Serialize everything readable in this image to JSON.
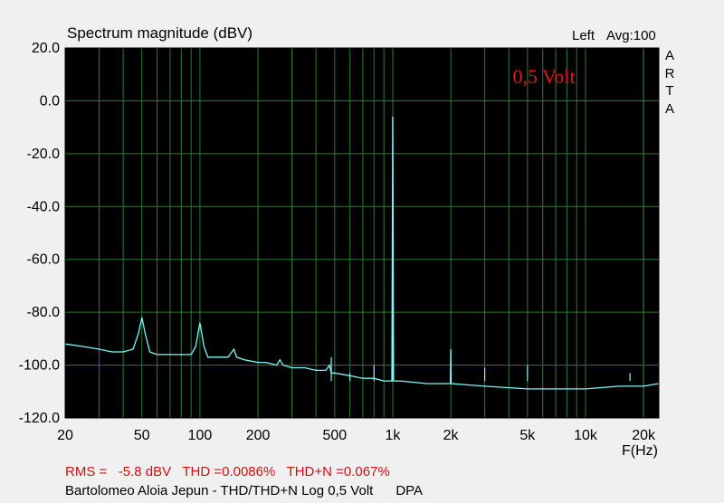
{
  "header": {
    "title": "Spectrum magnitude (dBV)",
    "channel": "Left",
    "averaging": "Avg:100",
    "brand_letters": [
      "A",
      "R",
      "T",
      "A"
    ]
  },
  "footer": {
    "stats": "RMS =   -5.8 dBV   THD =0.0086%   THD+N =0.067%",
    "caption": "Bartolomeo Aloia Jepun - THD/THD+N Log 0,5 Volt      DPA"
  },
  "colors": {
    "background": "#000000",
    "grid": "#2e7d2e",
    "trace": "#7ff7f7",
    "annotation": "#e01818"
  },
  "chart_data": {
    "type": "line",
    "title": "Spectrum magnitude (dBV)",
    "xlabel": "F(Hz)",
    "ylabel": "",
    "xscale": "log",
    "xlim": [
      20,
      24000
    ],
    "ylim": [
      -120,
      20
    ],
    "grid": true,
    "annotation": "0,5 Volt",
    "x_ticks": [
      {
        "value": 20,
        "label": "20"
      },
      {
        "value": 50,
        "label": "50"
      },
      {
        "value": 100,
        "label": "100"
      },
      {
        "value": 200,
        "label": "200"
      },
      {
        "value": 500,
        "label": "500"
      },
      {
        "value": 1000,
        "label": "1k"
      },
      {
        "value": 2000,
        "label": "2k"
      },
      {
        "value": 5000,
        "label": "5k"
      },
      {
        "value": 10000,
        "label": "10k"
      },
      {
        "value": 20000,
        "label": "20k"
      }
    ],
    "y_ticks": [
      {
        "value": 20,
        "label": "20.0"
      },
      {
        "value": 0,
        "label": "0.0"
      },
      {
        "value": -20,
        "label": "-20.0"
      },
      {
        "value": -40,
        "label": "-40.0"
      },
      {
        "value": -60,
        "label": "-60.0"
      },
      {
        "value": -80,
        "label": "-80.0"
      },
      {
        "value": -100,
        "label": "-100.0"
      },
      {
        "value": -120,
        "label": "-120.0"
      }
    ],
    "series": [
      {
        "points": [
          [
            20,
            -92
          ],
          [
            25,
            -93
          ],
          [
            30,
            -94
          ],
          [
            35,
            -95
          ],
          [
            40,
            -95
          ],
          [
            45,
            -94
          ],
          [
            48,
            -88
          ],
          [
            50,
            -82
          ],
          [
            52,
            -88
          ],
          [
            55,
            -95
          ],
          [
            60,
            -96
          ],
          [
            70,
            -96
          ],
          [
            80,
            -96
          ],
          [
            90,
            -96
          ],
          [
            95,
            -93
          ],
          [
            100,
            -84
          ],
          [
            105,
            -93
          ],
          [
            110,
            -97
          ],
          [
            120,
            -97
          ],
          [
            130,
            -97
          ],
          [
            140,
            -97
          ],
          [
            150,
            -94
          ],
          [
            155,
            -97
          ],
          [
            170,
            -98
          ],
          [
            200,
            -99
          ],
          [
            220,
            -99
          ],
          [
            250,
            -100
          ],
          [
            260,
            -98
          ],
          [
            270,
            -100
          ],
          [
            300,
            -101
          ],
          [
            350,
            -101
          ],
          [
            400,
            -102
          ],
          [
            450,
            -102
          ],
          [
            470,
            -100
          ],
          [
            480,
            -103
          ],
          [
            500,
            -103
          ],
          [
            600,
            -104
          ],
          [
            700,
            -105
          ],
          [
            800,
            -105
          ],
          [
            900,
            -106
          ],
          [
            990,
            -106
          ],
          [
            1000,
            -6
          ],
          [
            1010,
            -106
          ],
          [
            1100,
            -106
          ],
          [
            1500,
            -107
          ],
          [
            1990,
            -107
          ],
          [
            2000,
            -94
          ],
          [
            2010,
            -107
          ],
          [
            3000,
            -108
          ],
          [
            5000,
            -109
          ],
          [
            7000,
            -109
          ],
          [
            10000,
            -109
          ],
          [
            15000,
            -108
          ],
          [
            20000,
            -108
          ],
          [
            24000,
            -107
          ]
        ]
      }
    ],
    "harmonic_spikes": [
      {
        "x": 1000,
        "y": -6
      },
      {
        "x": 2000,
        "y": -94
      },
      {
        "x": 3000,
        "y": -101
      },
      {
        "x": 5000,
        "y": -100
      },
      {
        "x": 480,
        "y": -97
      },
      {
        "x": 600,
        "y": -103
      },
      {
        "x": 800,
        "y": -100
      },
      {
        "x": 17000,
        "y": -103
      }
    ]
  }
}
